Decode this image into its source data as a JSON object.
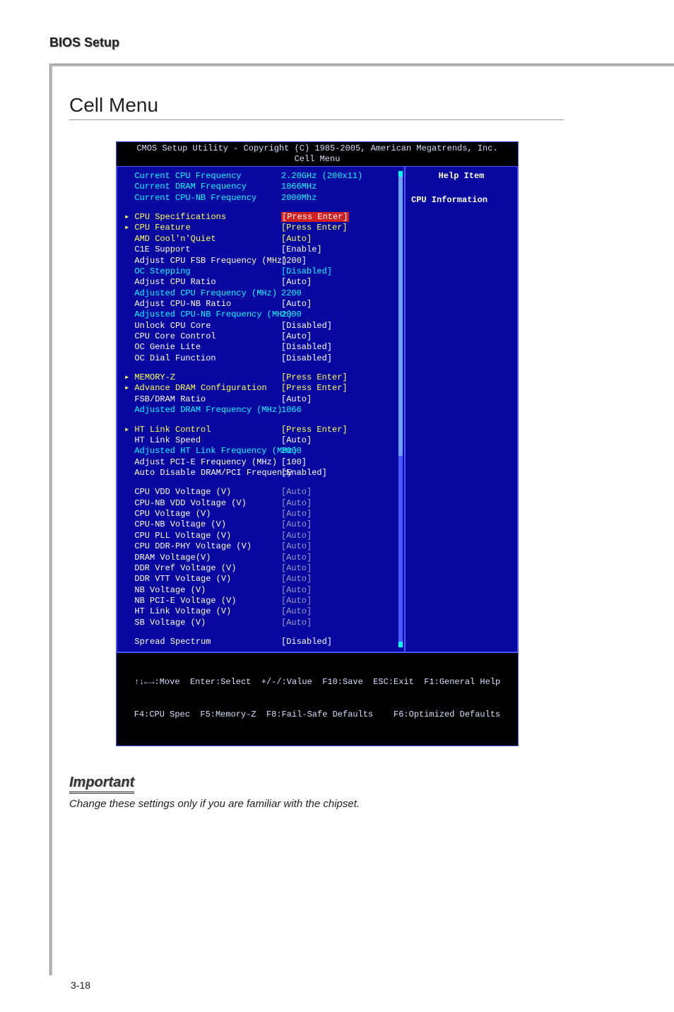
{
  "page": {
    "header": "BIOS Setup",
    "section_title": "Cell Menu",
    "footer_pagenum": "3-18"
  },
  "bios": {
    "title_line1": "CMOS Setup Utility - Copyright (C) 1985-2005, American Megatrends, Inc.",
    "title_line2": "Cell Menu",
    "help_title": "Help Item",
    "help_text": "CPU Information",
    "footer_line1": "↑↓←→:Move  Enter:Select  +/-/:Value  F10:Save  ESC:Exit  F1:General Help",
    "footer_line2": "F4:CPU Spec  F5:Memory-Z  F8:Fail-Safe Defaults    F6:Optimized Defaults"
  },
  "rows": [
    {
      "label": "Current CPU Frequency",
      "value": "2.20GHz (200x11)",
      "lcolor": "cyan",
      "vcolor": "cyan",
      "arrow": false,
      "hl": false
    },
    {
      "label": "Current DRAM Frequency",
      "value": "1066MHz",
      "lcolor": "cyan",
      "vcolor": "cyan",
      "arrow": false,
      "hl": false
    },
    {
      "label": "Current CPU-NB Frequency",
      "value": "2000Mhz",
      "lcolor": "cyan",
      "vcolor": "cyan",
      "arrow": false,
      "hl": false
    },
    {
      "gap": true
    },
    {
      "label": "CPU Specifications",
      "value": "[Press Enter]",
      "lcolor": "yellow",
      "vcolor": "yellow",
      "arrow": true,
      "hl": true
    },
    {
      "label": "CPU Feature",
      "value": "[Press Enter]",
      "lcolor": "yellow",
      "vcolor": "yellow",
      "arrow": true,
      "hl": false
    },
    {
      "label": "AMD Cool'n'Quiet",
      "value": "[Auto]",
      "lcolor": "yellow",
      "vcolor": "yellow",
      "arrow": false,
      "hl": false
    },
    {
      "label": "C1E Support",
      "value": "[Enable]",
      "lcolor": "white",
      "vcolor": "white",
      "arrow": false,
      "hl": false
    },
    {
      "label": "Adjust CPU FSB Frequency (MHz)",
      "value": "[200]",
      "lcolor": "white",
      "vcolor": "white",
      "arrow": false,
      "hl": false
    },
    {
      "label": "OC Stepping",
      "value": "[Disabled]",
      "lcolor": "cyan",
      "vcolor": "cyan",
      "arrow": false,
      "hl": false
    },
    {
      "label": "Adjust CPU Ratio",
      "value": "[Auto]",
      "lcolor": "white",
      "vcolor": "white",
      "arrow": false,
      "hl": false
    },
    {
      "label": "Adjusted CPU Frequency (MHz)",
      "value": "2200",
      "lcolor": "cyan",
      "vcolor": "cyan",
      "arrow": false,
      "hl": false
    },
    {
      "label": "Adjust CPU-NB Ratio",
      "value": "[Auto]",
      "lcolor": "white",
      "vcolor": "white",
      "arrow": false,
      "hl": false
    },
    {
      "label": "Adjusted CPU-NB Frequency (MHz)",
      "value": "2000",
      "lcolor": "cyan",
      "vcolor": "cyan",
      "arrow": false,
      "hl": false
    },
    {
      "label": "Unlock CPU Core",
      "value": "[Disabled]",
      "lcolor": "white",
      "vcolor": "white",
      "arrow": false,
      "hl": false
    },
    {
      "label": "CPU Core Control",
      "value": "[Auto]",
      "lcolor": "white",
      "vcolor": "white",
      "arrow": false,
      "hl": false
    },
    {
      "label": "OC Genie Lite",
      "value": "[Disabled]",
      "lcolor": "white",
      "vcolor": "white",
      "arrow": false,
      "hl": false
    },
    {
      "label": "OC Dial Function",
      "value": "[Disabled]",
      "lcolor": "white",
      "vcolor": "white",
      "arrow": false,
      "hl": false
    },
    {
      "gap": true
    },
    {
      "label": "MEMORY-Z",
      "value": "[Press Enter]",
      "lcolor": "yellow",
      "vcolor": "yellow",
      "arrow": true,
      "hl": false
    },
    {
      "label": "Advance DRAM Configuration",
      "value": "[Press Enter]",
      "lcolor": "yellow",
      "vcolor": "yellow",
      "arrow": true,
      "hl": false
    },
    {
      "label": "FSB/DRAM Ratio",
      "value": "[Auto]",
      "lcolor": "white",
      "vcolor": "white",
      "arrow": false,
      "hl": false
    },
    {
      "label": "Adjusted DRAM Frequency (MHz)",
      "value": "1066",
      "lcolor": "cyan",
      "vcolor": "cyan",
      "arrow": false,
      "hl": false
    },
    {
      "gap": true
    },
    {
      "label": "HT Link Control",
      "value": "[Press Enter]",
      "lcolor": "yellow",
      "vcolor": "yellow",
      "arrow": true,
      "hl": false
    },
    {
      "label": "HT Link Speed",
      "value": "[Auto]",
      "lcolor": "white",
      "vcolor": "white",
      "arrow": false,
      "hl": false
    },
    {
      "label": "Adjusted HT Link Frequency (MHz)",
      "value": "2000",
      "lcolor": "cyan",
      "vcolor": "cyan",
      "arrow": false,
      "hl": false
    },
    {
      "label": "Adjust PCI-E Frequency (MHz)",
      "value": "[100]",
      "lcolor": "white",
      "vcolor": "white",
      "arrow": false,
      "hl": false
    },
    {
      "label": "Auto Disable DRAM/PCI Frequency",
      "value": "[Enabled]",
      "lcolor": "white",
      "vcolor": "white",
      "arrow": false,
      "hl": false
    },
    {
      "gap": true
    },
    {
      "label": "CPU VDD Voltage (V)",
      "value": "[Auto]",
      "lcolor": "white",
      "vcolor": "grey",
      "arrow": false,
      "hl": false
    },
    {
      "label": "CPU-NB VDD Voltage (V)",
      "value": "[Auto]",
      "lcolor": "white",
      "vcolor": "grey",
      "arrow": false,
      "hl": false
    },
    {
      "label": "CPU Voltage (V)",
      "value": "[Auto]",
      "lcolor": "white",
      "vcolor": "grey",
      "arrow": false,
      "hl": false
    },
    {
      "label": "CPU-NB Voltage (V)",
      "value": "[Auto]",
      "lcolor": "white",
      "vcolor": "grey",
      "arrow": false,
      "hl": false
    },
    {
      "label": "CPU PLL Voltage (V)",
      "value": "[Auto]",
      "lcolor": "white",
      "vcolor": "grey",
      "arrow": false,
      "hl": false
    },
    {
      "label": "CPU DDR-PHY Voltage (V)",
      "value": "[Auto]",
      "lcolor": "white",
      "vcolor": "grey",
      "arrow": false,
      "hl": false
    },
    {
      "label": "DRAM Voltage(V)",
      "value": "[Auto]",
      "lcolor": "white",
      "vcolor": "grey",
      "arrow": false,
      "hl": false
    },
    {
      "label": "DDR Vref Voltage (V)",
      "value": "[Auto]",
      "lcolor": "white",
      "vcolor": "grey",
      "arrow": false,
      "hl": false
    },
    {
      "label": "DDR VTT Voltage (V)",
      "value": "[Auto]",
      "lcolor": "white",
      "vcolor": "grey",
      "arrow": false,
      "hl": false
    },
    {
      "label": "NB Voltage (V)",
      "value": "[Auto]",
      "lcolor": "white",
      "vcolor": "grey",
      "arrow": false,
      "hl": false
    },
    {
      "label": "NB PCI-E Voltage (V)",
      "value": "[Auto]",
      "lcolor": "white",
      "vcolor": "grey",
      "arrow": false,
      "hl": false
    },
    {
      "label": "HT Link Voltage (V)",
      "value": "[Auto]",
      "lcolor": "white",
      "vcolor": "grey",
      "arrow": false,
      "hl": false
    },
    {
      "label": "SB Voltage (V)",
      "value": "[Auto]",
      "lcolor": "white",
      "vcolor": "grey",
      "arrow": false,
      "hl": false
    },
    {
      "gap": true
    },
    {
      "label": "Spread Spectrum",
      "value": "[Disabled]",
      "lcolor": "white",
      "vcolor": "white",
      "arrow": false,
      "hl": false
    }
  ],
  "important": {
    "label": "Important",
    "text": "Change these settings only if you are familiar with the chipset."
  },
  "style": {
    "bios_bg": "#0808a0",
    "bios_border": "#4a58ff",
    "highlight_bg": "#d02020",
    "cyan": "#00ffff",
    "yellow": "#ffff55",
    "grey": "#9aa0c0",
    "white": "#ffffff"
  }
}
